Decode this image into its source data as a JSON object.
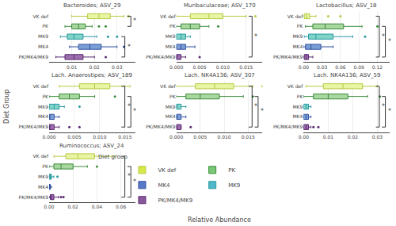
{
  "chart_data": {
    "type": "box",
    "xlabel": "Relative Abundance",
    "ylabel": "Diet Group",
    "legend_title": "Diet group",
    "legend_order": [
      "VK def",
      "PK",
      "MK4",
      "MK9",
      "PK/MK4/MK9"
    ],
    "grid": true,
    "categories": [
      "VK def",
      "PK",
      "MK9",
      "MK4",
      "PK/MK4/MK9"
    ],
    "series": [
      {
        "name": "VK def",
        "color": "#e8f5a3",
        "edge_color": "#b8c840",
        "legend_color": "#d4e84a"
      },
      {
        "name": "PK",
        "color": "#a8d8a0",
        "edge_color": "#3a8a3a",
        "legend_color": "#78c878"
      },
      {
        "name": "MK9",
        "color": "#80d4c8",
        "edge_color": "#2898a0",
        "legend_color": "#50b8c8"
      },
      {
        "name": "MK4",
        "color": "#7b9fd4",
        "edge_color": "#3050a0",
        "legend_color": "#5878c8"
      },
      {
        "name": "PK/MK4/MK9",
        "color": "#9c6fae",
        "edge_color": "#5a2870",
        "legend_color": "#885898"
      }
    ],
    "subplots": [
      {
        "title": "Bacteroides; ASV_29",
        "xlim": [
          0,
          0.038
        ],
        "xticks": [
          0.01,
          0.02,
          0.03
        ],
        "values": [
          {
            "median": 0.022,
            "q1": 0.017,
            "q3": 0.027,
            "whislo": 0.01,
            "whishi": 0.033,
            "fliers": [
              0.035
            ]
          },
          {
            "median": 0.013,
            "q1": 0.01,
            "q3": 0.016,
            "whislo": 0.007,
            "whishi": 0.019,
            "fliers": [
              0.022,
              0.025
            ]
          },
          {
            "median": 0.011,
            "q1": 0.008,
            "q3": 0.015,
            "whislo": 0.005,
            "whishi": 0.021,
            "fliers": [
              0.026,
              0.03
            ]
          },
          {
            "median": 0.018,
            "q1": 0.013,
            "q3": 0.023,
            "whislo": 0.009,
            "whishi": 0.03,
            "fliers": [
              0.033
            ]
          },
          {
            "median": 0.011,
            "q1": 0.007,
            "q3": 0.015,
            "whislo": 0.003,
            "whishi": 0.02,
            "fliers": [
              0.025
            ]
          }
        ],
        "brackets": [
          {
            "groups": [
              "VK def",
              "PK"
            ],
            "text": "*"
          },
          {
            "groups": [
              "MK9",
              "PK/MK4/MK9"
            ],
            "text": "*"
          }
        ]
      },
      {
        "title": "Muribaculaceae; ASV_170",
        "xlim": [
          0,
          0.0185
        ],
        "xticks": [
          {
            "value": 0,
            "label": "0.000"
          },
          0.005,
          {
            "value": 0.01,
            "label": "0.010"
          },
          0.015
        ],
        "values": [
          {
            "median": 0.007,
            "q1": 0.003,
            "q3": 0.01,
            "whislo": 0.0,
            "whishi": 0.015,
            "fliers": [
              0.017
            ]
          },
          {
            "median": 0.003,
            "q1": 0.001,
            "q3": 0.005,
            "whislo": 0.0,
            "whishi": 0.007,
            "fliers": [
              0.009
            ]
          },
          {
            "median": 0.001,
            "q1": 0.0,
            "q3": 0.002,
            "whislo": 0.0,
            "whishi": 0.003,
            "fliers": []
          },
          {
            "median": 0.001,
            "q1": 0.0,
            "q3": 0.002,
            "whislo": 0.0,
            "whishi": 0.004,
            "fliers": []
          },
          {
            "median": 0.0,
            "q1": 0.0,
            "q3": 0.001,
            "whislo": 0.0,
            "whishi": 0.002,
            "fliers": [
              0.005
            ]
          }
        ],
        "brackets": [
          {
            "groups": [
              "VK def",
              "PK/MK4/MK9"
            ],
            "text": "*"
          }
        ]
      },
      {
        "title": "Lactobacillus; ASV_18",
        "xlim": [
          0,
          0.14
        ],
        "xticks": [
          {
            "value": 0,
            "label": "0.00"
          },
          0.03,
          0.06,
          0.09,
          0.12
        ],
        "values": [
          {
            "median": 0.005,
            "q1": 0.001,
            "q3": 0.01,
            "whislo": 0.0,
            "whishi": 0.02,
            "fliers": [
              0.04,
              0.06
            ]
          },
          {
            "median": 0.035,
            "q1": 0.015,
            "q3": 0.065,
            "whislo": 0.003,
            "whishi": 0.095,
            "fliers": [
              0.12
            ]
          },
          {
            "median": 0.02,
            "q1": 0.008,
            "q3": 0.048,
            "whislo": 0.001,
            "whishi": 0.08,
            "fliers": [
              0.1
            ]
          },
          {
            "median": 0.012,
            "q1": 0.003,
            "q3": 0.028,
            "whislo": 0.0,
            "whishi": 0.048,
            "fliers": []
          },
          {
            "median": 0.004,
            "q1": 0.001,
            "q3": 0.008,
            "whislo": 0.0,
            "whishi": 0.015,
            "fliers": []
          }
        ],
        "brackets": [
          {
            "groups": [
              "VK def",
              "PK/MK4/MK9"
            ],
            "text": "*"
          },
          {
            "groups": [
              "PK",
              "PK/MK4/MK9"
            ],
            "text": "*"
          }
        ]
      },
      {
        "title": "Lach. Anaerostipes; ASV_189",
        "xlim": [
          0,
          0.017
        ],
        "xticks": [
          {
            "value": 0,
            "label": "0.000"
          },
          0.005,
          {
            "value": 0.01,
            "label": "0.010"
          },
          0.015
        ],
        "values": [
          {
            "median": 0.009,
            "q1": 0.006,
            "q3": 0.012,
            "whislo": 0.002,
            "whishi": 0.016,
            "fliers": []
          },
          {
            "median": 0.004,
            "q1": 0.002,
            "q3": 0.006,
            "whislo": 0.0,
            "whishi": 0.009,
            "fliers": [
              0.013
            ]
          },
          {
            "median": 0.001,
            "q1": 0.0,
            "q3": 0.002,
            "whislo": 0.0,
            "whishi": 0.003,
            "fliers": [
              0.006
            ]
          },
          {
            "median": 0.0,
            "q1": 0.0,
            "q3": 0.001,
            "whislo": 0.0,
            "whishi": 0.002,
            "fliers": []
          },
          {
            "median": 0.0,
            "q1": 0.0,
            "q3": 0.001,
            "whislo": 0.0,
            "whishi": 0.002,
            "fliers": [
              0.004,
              0.006
            ]
          }
        ],
        "brackets": [
          {
            "groups": [
              "VK def",
              "PK/MK4/MK9"
            ],
            "text": "*"
          },
          {
            "groups": [
              "PK",
              "PK/MK4/MK9"
            ],
            "text": "*"
          }
        ]
      },
      {
        "title": "Lach. NK4A136; ASV_307",
        "xlim": [
          0,
          0.018
        ],
        "xticks": [
          {
            "value": 0,
            "label": "0.000"
          },
          0.005,
          {
            "value": 0.01,
            "label": "0.010"
          },
          0.015
        ],
        "values": [
          {
            "median": 0.008,
            "q1": 0.004,
            "q3": 0.012,
            "whislo": 0.0,
            "whishi": 0.016,
            "fliers": [
              0.018
            ]
          },
          {
            "median": 0.005,
            "q1": 0.002,
            "q3": 0.009,
            "whislo": 0.0,
            "whishi": 0.014,
            "fliers": [
              0.016
            ]
          },
          {
            "median": 0.0,
            "q1": 0.0,
            "q3": 0.001,
            "whislo": 0.0,
            "whishi": 0.002,
            "fliers": []
          },
          {
            "median": 0.0,
            "q1": 0.0,
            "q3": 0.001,
            "whislo": 0.0,
            "whishi": 0.002,
            "fliers": []
          },
          {
            "median": 0.0,
            "q1": 0.0,
            "q3": 0.001,
            "whislo": 0.0,
            "whishi": 0.001,
            "fliers": [
              0.003
            ]
          }
        ],
        "brackets": [
          {
            "groups": [
              "VK def",
              "PK/MK4/MK9"
            ],
            "text": "*"
          },
          {
            "groups": [
              "PK",
              "PK/MK4/MK9"
            ],
            "text": "*"
          }
        ]
      },
      {
        "title": "Lach. NK4A136; ASV_59",
        "xlim": [
          0,
          0.035
        ],
        "xticks": [
          {
            "value": 0,
            "label": "0.00"
          },
          0.01,
          0.02,
          0.03
        ],
        "values": [
          {
            "median": 0.016,
            "q1": 0.008,
            "q3": 0.024,
            "whislo": 0.001,
            "whishi": 0.03,
            "fliers": []
          },
          {
            "median": 0.01,
            "q1": 0.004,
            "q3": 0.018,
            "whislo": 0.0,
            "whishi": 0.026,
            "fliers": [
              0.031
            ]
          },
          {
            "median": 0.001,
            "q1": 0.0,
            "q3": 0.002,
            "whislo": 0.0,
            "whishi": 0.003,
            "fliers": []
          },
          {
            "median": 0.001,
            "q1": 0.0,
            "q3": 0.002,
            "whislo": 0.0,
            "whishi": 0.003,
            "fliers": []
          },
          {
            "median": 0.001,
            "q1": 0.0,
            "q3": 0.002,
            "whislo": 0.0,
            "whishi": 0.003,
            "fliers": [
              0.004,
              0.006
            ]
          }
        ],
        "brackets": [
          {
            "groups": [
              "VK def",
              "PK/MK4/MK9"
            ],
            "text": "*"
          },
          {
            "groups": [
              "PK",
              "PK/MK4/MK9"
            ],
            "text": "*"
          }
        ]
      },
      {
        "title": "Ruminococcus; ASV_24",
        "xlim": [
          0,
          0.072
        ],
        "xticks": [
          {
            "value": 0,
            "label": "0.00"
          },
          0.02,
          0.04,
          0.06
        ],
        "values": [
          {
            "median": 0.024,
            "q1": 0.014,
            "q3": 0.038,
            "whislo": 0.004,
            "whishi": 0.055,
            "fliers": []
          },
          {
            "median": 0.01,
            "q1": 0.004,
            "q3": 0.02,
            "whislo": 0.0,
            "whishi": 0.032,
            "fliers": [
              0.04
            ]
          },
          {
            "median": 0.001,
            "q1": 0.0,
            "q3": 0.002,
            "whislo": 0.0,
            "whishi": 0.004,
            "fliers": [
              0.007
            ]
          },
          {
            "median": 0.0,
            "q1": 0.0,
            "q3": 0.001,
            "whislo": 0.0,
            "whishi": 0.002,
            "fliers": []
          },
          {
            "median": 0.002,
            "q1": 0.001,
            "q3": 0.004,
            "whislo": 0.0,
            "whishi": 0.008,
            "fliers": [
              0.01,
              0.012
            ]
          }
        ],
        "brackets": [
          {
            "groups": [
              "VK def",
              "PK/MK4/MK9"
            ],
            "text": "*"
          },
          {
            "groups": [
              "PK",
              "PK/MK4/MK9"
            ],
            "text": "*"
          }
        ]
      }
    ]
  }
}
